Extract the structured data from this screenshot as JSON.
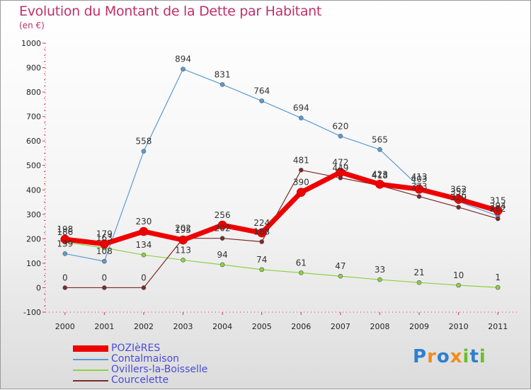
{
  "title": "Evolution du Montant de la Dette par Habitant",
  "subtitle": "(en €)",
  "logo": {
    "text": "Proxiti",
    "letters": [
      {
        "ch": "P",
        "color": "#2f7fd0"
      },
      {
        "ch": "r",
        "color": "#f28c1a"
      },
      {
        "ch": "o",
        "color": "#2f7fd0"
      },
      {
        "ch": "x",
        "color": "#f28c1a"
      },
      {
        "ch": "i",
        "color": "#6bbf2a"
      },
      {
        "ch": "t",
        "color": "#2f7fd0"
      },
      {
        "ch": "i",
        "color": "#6bbf2a"
      }
    ]
  },
  "chart_data": {
    "type": "line",
    "title": "Evolution du Montant de la Dette par Habitant",
    "subtitle": "(en €)",
    "x": [
      "2000",
      "2001",
      "2002",
      "2003",
      "2004",
      "2005",
      "2006",
      "2007",
      "2008",
      "2009",
      "2010",
      "2011"
    ],
    "ylim": [
      -100,
      1000
    ],
    "yticks": [
      "-100",
      "0",
      "100",
      "200",
      "300",
      "400",
      "500",
      "600",
      "700",
      "800",
      "900",
      "1000"
    ],
    "grid": false,
    "legend_position": "bottom-left",
    "series": [
      {
        "name": "POZIèRES",
        "color": "#ee0000",
        "stroke": 7,
        "marker": 6,
        "values": [
          198,
          179,
          230,
          195,
          256,
          224,
          390,
          472,
          423,
          403,
          362,
          315
        ]
      },
      {
        "name": "Contalmaison",
        "color": "#5b9bd5",
        "stroke": 1.2,
        "marker": 3,
        "values": [
          139,
          108,
          558,
          894,
          831,
          764,
          694,
          620,
          565,
          413,
          352,
          294
        ]
      },
      {
        "name": "Ovillers-la-Boisselle",
        "color": "#8ed045",
        "stroke": 1.2,
        "marker": 3,
        "values": [
          186,
          163,
          134,
          113,
          94,
          74,
          61,
          47,
          33,
          21,
          10,
          1
        ]
      },
      {
        "name": "Courcelette",
        "color": "#7b2a2a",
        "stroke": 1.2,
        "marker": 3,
        "values": [
          0,
          0,
          0,
          202,
          202,
          188,
          481,
          449,
          418,
          373,
          329,
          282
        ]
      }
    ]
  }
}
